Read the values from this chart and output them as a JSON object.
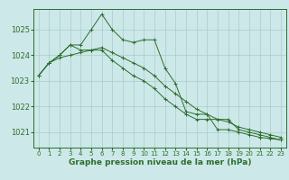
{
  "background_color": "#cce8e8",
  "grid_color": "#aacccc",
  "line_color": "#2d6e2d",
  "marker_color": "#2d6e2d",
  "xlabel": "Graphe pression niveau de la mer (hPa)",
  "xlabel_fontsize": 6.5,
  "ytick_fontsize": 6,
  "xtick_fontsize": 5,
  "yticks": [
    1021,
    1022,
    1023,
    1024,
    1025
  ],
  "xticks": [
    0,
    1,
    2,
    3,
    4,
    5,
    6,
    7,
    8,
    9,
    10,
    11,
    12,
    13,
    14,
    15,
    16,
    17,
    18,
    19,
    20,
    21,
    22,
    23
  ],
  "ylim": [
    1020.4,
    1025.8
  ],
  "xlim": [
    -0.5,
    23.5
  ],
  "series": [
    [
      1023.2,
      1023.7,
      1024.0,
      1024.4,
      1024.4,
      1025.0,
      1025.6,
      1025.0,
      1024.6,
      1024.5,
      1024.6,
      1024.6,
      1023.5,
      1022.9,
      1021.8,
      1021.7,
      1021.7,
      1021.1,
      1021.1,
      1021.0,
      1020.9,
      1020.8,
      1020.75,
      1020.7
    ],
    [
      1023.2,
      1023.7,
      1024.0,
      1024.4,
      1024.2,
      1024.2,
      1024.2,
      1023.8,
      1023.5,
      1023.2,
      1023.0,
      1022.7,
      1022.3,
      1022.0,
      1021.7,
      1021.5,
      1021.5,
      1021.5,
      1021.5,
      1021.1,
      1021.0,
      1020.9,
      1020.8,
      1020.7
    ],
    [
      1023.2,
      1023.7,
      1023.9,
      1024.0,
      1024.1,
      1024.2,
      1024.3,
      1024.1,
      1023.9,
      1023.7,
      1023.5,
      1023.2,
      1022.8,
      1022.5,
      1022.2,
      1021.9,
      1021.7,
      1021.5,
      1021.4,
      1021.2,
      1021.1,
      1021.0,
      1020.9,
      1020.8
    ]
  ]
}
